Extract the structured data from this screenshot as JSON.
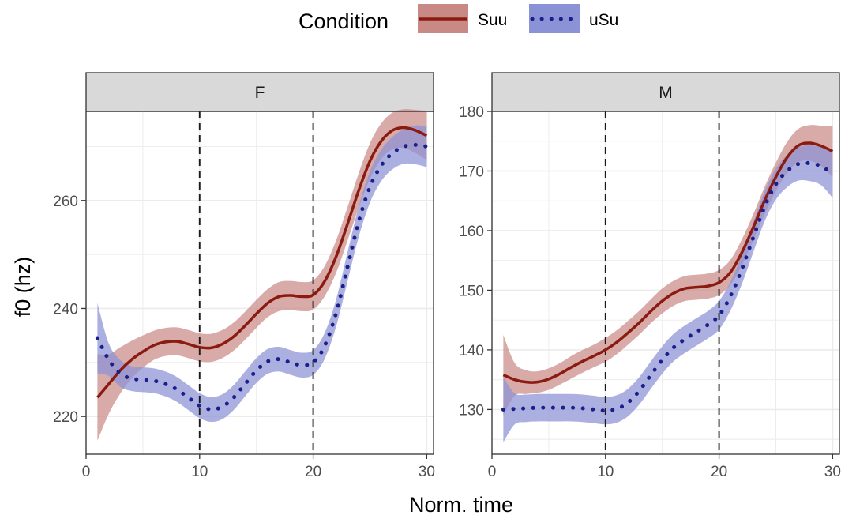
{
  "chart_data": {
    "type": "line",
    "xlabel": "Norm. time",
    "ylabel": "f0 (hz)",
    "legend": {
      "title": "Condition",
      "position": "top",
      "entries": [
        {
          "label": "Suu",
          "line": "#8B1A10",
          "band": "#C98A86",
          "dash": "solid"
        },
        {
          "label": "uSu",
          "line": "#1A1F8C",
          "band": "#8C92D6",
          "dash": "dotted"
        }
      ]
    },
    "vlines": [
      10,
      20
    ],
    "grid": true,
    "panels": [
      {
        "label": "F",
        "xlim": [
          0,
          30.6
        ],
        "ylim": [
          213,
          276.5
        ],
        "xticks": [
          0,
          10,
          20,
          30
        ],
        "yticks": [
          220,
          240,
          260
        ],
        "series": [
          {
            "name": "Suu",
            "x": [
              1,
              2,
              3,
              4,
              5,
              6,
              7,
              8,
              9,
              10,
              11,
              12,
              13,
              14,
              15,
              16,
              17,
              18,
              19,
              20,
              21,
              22,
              23,
              24,
              25,
              26,
              27,
              28,
              29,
              30
            ],
            "y": [
              223.5,
              226.0,
              228.5,
              230.5,
              232.0,
              233.2,
              233.8,
              233.9,
              233.4,
              232.8,
              232.7,
              233.4,
              234.8,
              236.8,
              239.0,
              241.0,
              242.2,
              242.4,
              242.2,
              242.5,
              245.0,
              249.5,
              255.5,
              261.8,
              267.3,
              271.0,
              273.0,
              273.5,
              273.0,
              272.0
            ],
            "lower": [
              215.5,
              220.5,
              224.2,
              227.0,
              229.0,
              230.5,
              231.2,
              231.3,
              230.8,
              230.2,
              230.1,
              230.8,
              232.2,
              234.2,
              236.4,
              238.4,
              239.5,
              239.7,
              239.5,
              239.8,
              242.2,
              246.5,
              252.4,
              258.6,
              264.0,
              267.7,
              269.5,
              269.7,
              268.8,
              267.5
            ],
            "upper": [
              231.5,
              231.5,
              232.8,
              234.0,
              235.0,
              235.9,
              236.4,
              236.5,
              236.0,
              235.4,
              235.3,
              236.0,
              237.4,
              239.4,
              241.6,
              243.6,
              244.9,
              245.1,
              244.9,
              245.2,
              247.8,
              252.5,
              258.6,
              265.0,
              270.6,
              274.3,
              276.3,
              276.9,
              276.8,
              276.6
            ]
          },
          {
            "name": "uSu",
            "x": [
              1,
              2,
              3,
              4,
              5,
              6,
              7,
              8,
              9,
              10,
              11,
              12,
              13,
              14,
              15,
              16,
              17,
              18,
              19,
              20,
              21,
              22,
              23,
              24,
              25,
              26,
              27,
              28,
              29,
              30
            ],
            "y": [
              234.5,
              230.5,
              228.0,
              227.0,
              226.8,
              226.6,
              226.0,
              225.0,
              223.5,
              222.0,
              221.3,
              221.8,
              223.5,
              226.0,
              228.5,
              230.2,
              230.6,
              230.0,
              229.5,
              230.0,
              233.0,
              239.0,
              247.5,
              256.0,
              262.5,
              266.5,
              268.8,
              270.0,
              270.3,
              270.0
            ],
            "lower": [
              228.0,
              227.5,
              225.5,
              224.7,
              224.5,
              224.3,
              223.7,
              222.7,
              221.2,
              219.7,
              219.0,
              219.5,
              221.2,
              223.7,
              226.2,
              227.9,
              228.3,
              227.7,
              227.2,
              227.7,
              230.6,
              236.5,
              244.8,
              253.2,
              259.6,
              263.6,
              265.8,
              266.8,
              266.7,
              266.2
            ],
            "upper": [
              241.0,
              233.5,
              230.5,
              229.3,
              229.1,
              228.9,
              228.3,
              227.3,
              225.8,
              224.3,
              223.6,
              224.1,
              225.8,
              228.3,
              230.8,
              232.5,
              232.9,
              232.3,
              231.8,
              232.3,
              235.4,
              241.5,
              250.2,
              258.8,
              265.4,
              269.4,
              271.8,
              273.2,
              273.9,
              273.8
            ]
          }
        ]
      },
      {
        "label": "M",
        "xlim": [
          0,
          30.6
        ],
        "ylim": [
          122.5,
          180
        ],
        "xticks": [
          0,
          10,
          20,
          30
        ],
        "yticks": [
          130,
          140,
          150,
          160,
          170,
          180
        ],
        "series": [
          {
            "name": "Suu",
            "x": [
              1,
              2,
              3,
              4,
              5,
              6,
              7,
              8,
              9,
              10,
              11,
              12,
              13,
              14,
              15,
              16,
              17,
              18,
              19,
              20,
              21,
              22,
              23,
              24,
              25,
              26,
              27,
              28,
              29,
              30
            ],
            "y": [
              135.8,
              135.0,
              134.6,
              134.6,
              135.1,
              136.0,
              137.1,
              138.1,
              139.0,
              140.0,
              141.3,
              142.9,
              144.6,
              146.5,
              148.2,
              149.5,
              150.3,
              150.5,
              150.7,
              151.3,
              153.0,
              156.3,
              160.5,
              165.0,
              169.0,
              172.3,
              174.3,
              174.7,
              174.2,
              173.3
            ],
            "lower": [
              129.0,
              132.3,
              132.6,
              132.8,
              133.3,
              134.2,
              135.2,
              136.2,
              137.1,
              138.0,
              139.3,
              140.9,
              142.6,
              144.5,
              146.1,
              147.4,
              148.2,
              148.4,
              148.6,
              149.2,
              150.9,
              154.1,
              158.3,
              162.7,
              166.6,
              169.7,
              171.5,
              171.7,
              170.8,
              169.0
            ],
            "upper": [
              142.5,
              137.8,
              136.6,
              136.4,
              136.9,
              137.8,
              139.0,
              140.0,
              140.9,
              142.0,
              143.3,
              144.9,
              146.6,
              148.5,
              150.3,
              151.6,
              152.4,
              152.6,
              152.8,
              153.4,
              155.1,
              158.5,
              162.7,
              167.3,
              171.4,
              174.9,
              177.1,
              177.7,
              177.6,
              177.6
            ]
          },
          {
            "name": "uSu",
            "x": [
              1,
              2,
              3,
              4,
              5,
              6,
              7,
              8,
              9,
              10,
              11,
              12,
              13,
              14,
              15,
              16,
              17,
              18,
              19,
              20,
              21,
              22,
              23,
              24,
              25,
              26,
              27,
              28,
              29,
              30
            ],
            "y": [
              130.0,
              130.1,
              130.2,
              130.3,
              130.3,
              130.3,
              130.3,
              130.2,
              130.0,
              129.8,
              130.1,
              131.2,
              133.2,
              135.8,
              138.3,
              140.4,
              141.8,
              143.0,
              144.2,
              145.8,
              149.0,
              153.5,
              158.8,
              164.0,
              167.8,
              170.0,
              171.2,
              171.3,
              170.8,
              169.5
            ],
            "lower": [
              124.5,
              127.5,
              127.9,
              128.0,
              128.0,
              128.0,
              128.0,
              127.9,
              127.7,
              127.5,
              127.8,
              128.9,
              130.9,
              133.5,
              136.0,
              138.1,
              139.5,
              140.7,
              141.9,
              143.4,
              146.6,
              151.0,
              156.3,
              161.5,
              165.2,
              167.3,
              168.4,
              168.3,
              167.6,
              165.5
            ],
            "upper": [
              135.5,
              132.7,
              132.5,
              132.6,
              132.6,
              132.6,
              132.6,
              132.5,
              132.3,
              132.1,
              132.4,
              133.5,
              135.5,
              138.1,
              140.6,
              142.7,
              144.1,
              145.3,
              146.5,
              148.2,
              151.4,
              156.0,
              161.3,
              166.5,
              170.4,
              172.7,
              174.0,
              174.3,
              174.0,
              173.5
            ]
          }
        ]
      }
    ]
  }
}
